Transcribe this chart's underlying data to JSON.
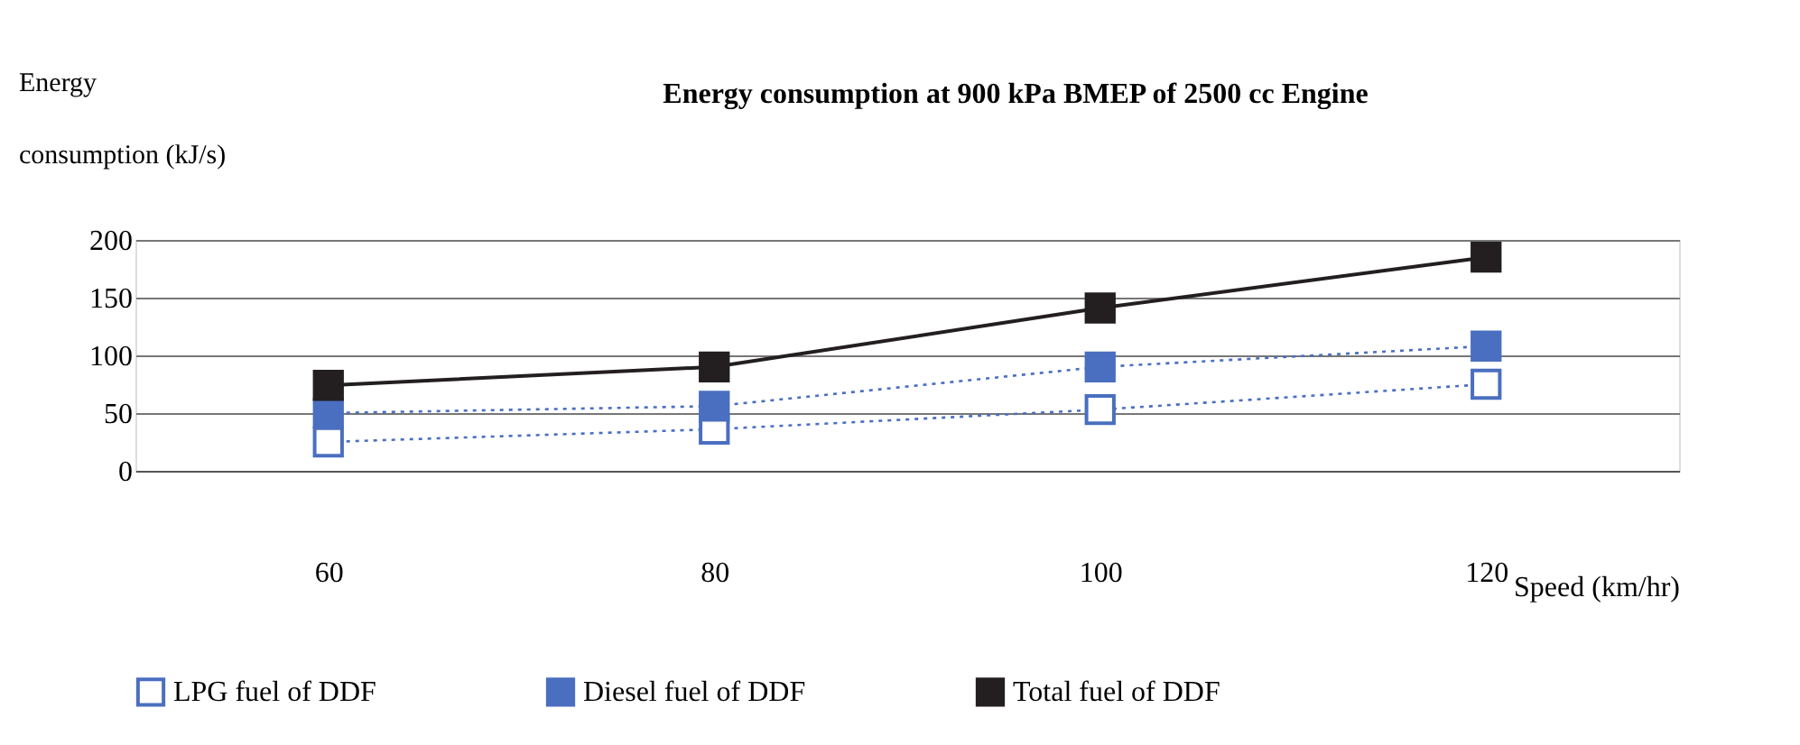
{
  "chart_data": {
    "type": "line",
    "title": "Energy consumption at 900 kPa BMEP of 2500 cc Engine",
    "xlabel": "Speed (km/hr)",
    "ylabel": "Energy consumption (kJ/s)",
    "categories": [
      "60",
      "80",
      "100",
      "120"
    ],
    "series": [
      {
        "name": "LPG fuel of DDF",
        "color": "#4a6fc0",
        "values": [
          25,
          36,
          53,
          75
        ],
        "line_style": "dotted"
      },
      {
        "name": "Diesel fuel of DDF",
        "color": "#4a6fc0",
        "values": [
          50,
          56,
          90,
          108
        ],
        "line_style": "dotted"
      },
      {
        "name": "Total fuel of DDF",
        "color": "#231f20",
        "values": [
          74,
          90,
          141,
          185
        ],
        "line_style": "solid"
      }
    ],
    "ylim": [
      0,
      200
    ],
    "yticks": [
      0,
      50,
      100,
      150,
      200
    ],
    "grid": "y",
    "legend": "bottom",
    "marker": "square"
  }
}
